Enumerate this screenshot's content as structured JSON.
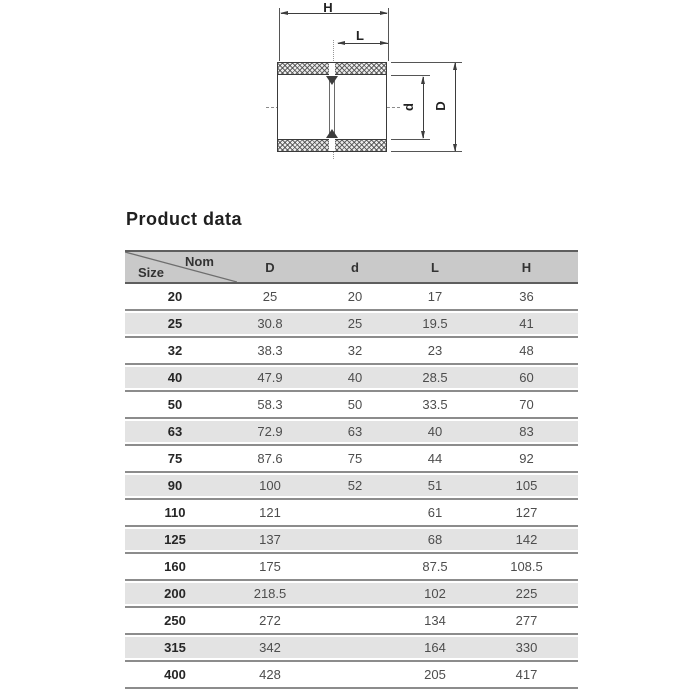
{
  "page": {
    "title": "Product data"
  },
  "drawing": {
    "dim_h_label": "H",
    "dim_l_label": "L",
    "dim_d_inner_label": "d",
    "dim_d_outer_label": "D"
  },
  "table": {
    "corner": {
      "top_right": "Nom",
      "bottom_left": "Size"
    },
    "columns": [
      "D",
      "d",
      "L",
      "H"
    ],
    "rows": [
      {
        "size": "20",
        "D": "25",
        "d": "20",
        "L": "17",
        "H": "36"
      },
      {
        "size": "25",
        "D": "30.8",
        "d": "25",
        "L": "19.5",
        "H": "41"
      },
      {
        "size": "32",
        "D": "38.3",
        "d": "32",
        "L": "23",
        "H": "48"
      },
      {
        "size": "40",
        "D": "47.9",
        "d": "40",
        "L": "28.5",
        "H": "60"
      },
      {
        "size": "50",
        "D": "58.3",
        "d": "50",
        "L": "33.5",
        "H": "70"
      },
      {
        "size": "63",
        "D": "72.9",
        "d": "63",
        "L": "40",
        "H": "83"
      },
      {
        "size": "75",
        "D": "87.6",
        "d": "75",
        "L": "44",
        "H": "92"
      },
      {
        "size": "90",
        "D": "100",
        "d": "52",
        "L": "51",
        "H": "105"
      },
      {
        "size": "110",
        "D": "121",
        "d": "",
        "L": "61",
        "H": "127"
      },
      {
        "size": "125",
        "D": "137",
        "d": "",
        "L": "68",
        "H": "142"
      },
      {
        "size": "160",
        "D": "175",
        "d": "",
        "L": "87.5",
        "H": "108.5"
      },
      {
        "size": "200",
        "D": "218.5",
        "d": "",
        "L": "102",
        "H": "225"
      },
      {
        "size": "250",
        "D": "272",
        "d": "",
        "L": "134",
        "H": "277"
      },
      {
        "size": "315",
        "D": "342",
        "d": "",
        "L": "164",
        "H": "330"
      },
      {
        "size": "400",
        "D": "428",
        "d": "",
        "L": "205",
        "H": "417"
      }
    ]
  },
  "colors": {
    "header_bg": "#c9c9c9",
    "stripe_bg": "#e3e3e3",
    "row_separator": "#8c8c8c",
    "drawing_line": "#3d3d3d"
  }
}
